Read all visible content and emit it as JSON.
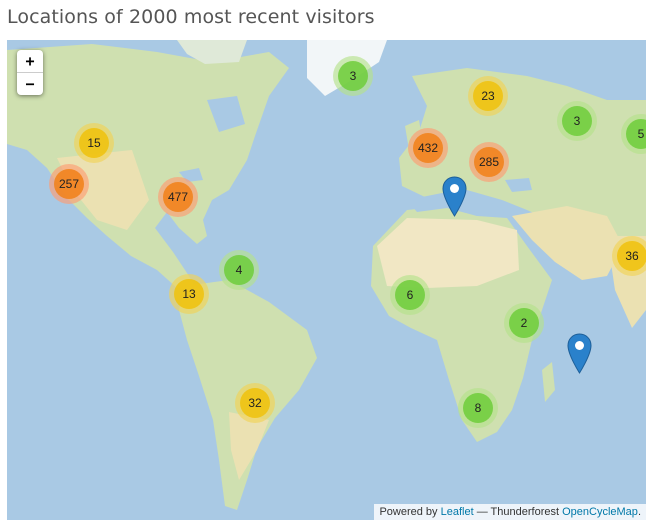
{
  "title": "Locations of 2000 most recent visitors",
  "zoom": {
    "in_label": "+",
    "out_label": "−"
  },
  "colors": {
    "ocean": "#a9c9e4",
    "land_green": "#cfe0b0",
    "land_dry": "#ebe1b2",
    "desert": "#f1e7c4",
    "ice": "#f2f6f8",
    "marker": "#2a81cb"
  },
  "clusters": [
    {
      "id": "greenland",
      "count": "3",
      "size": "small"
    },
    {
      "id": "scandinavia",
      "count": "23",
      "size": "medium"
    },
    {
      "id": "russia",
      "count": "3",
      "size": "small"
    },
    {
      "id": "east-asia",
      "count": "5",
      "size": "small"
    },
    {
      "id": "west-europe",
      "count": "432",
      "size": "large"
    },
    {
      "id": "east-europe",
      "count": "285",
      "size": "large"
    },
    {
      "id": "canada-west",
      "count": "15",
      "size": "medium"
    },
    {
      "id": "us-west",
      "count": "257",
      "size": "large"
    },
    {
      "id": "us-east",
      "count": "477",
      "size": "large"
    },
    {
      "id": "caribbean",
      "count": "4",
      "size": "small"
    },
    {
      "id": "colombia",
      "count": "13",
      "size": "medium"
    },
    {
      "id": "west-africa",
      "count": "6",
      "size": "small"
    },
    {
      "id": "east-africa",
      "count": "2",
      "size": "small"
    },
    {
      "id": "south-africa",
      "count": "8",
      "size": "small"
    },
    {
      "id": "brazil",
      "count": "32",
      "size": "medium"
    },
    {
      "id": "india",
      "count": "36",
      "size": "medium"
    }
  ],
  "markers": [
    "tunisia",
    "mauritius"
  ],
  "attribution": {
    "prefix": "Powered by",
    "leaflet_link": "Leaflet",
    "separator": "— Thunderforest",
    "map_link": "OpenCycleMap",
    "suffix": "."
  }
}
